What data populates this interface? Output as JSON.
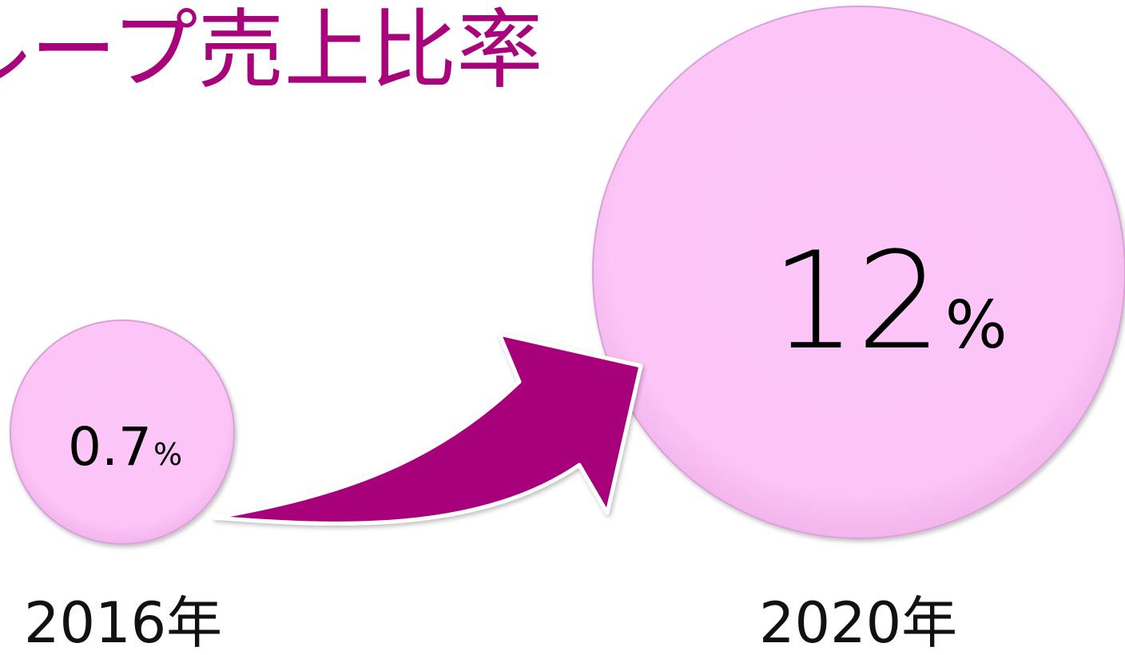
{
  "colors": {
    "accent": "#a8037a",
    "circle_fill": "#fdc6f8",
    "circle_edge": "#d9a2d6",
    "text": "#000000"
  },
  "chart_data": {
    "type": "bubble",
    "title": "ループ売上比率",
    "unit": "%",
    "categories": [
      "2016年",
      "2020年"
    ],
    "values": [
      0.7,
      12
    ],
    "value_labels": [
      "0.7",
      "12"
    ],
    "annotation": "arrow from 2016年 to 2020年 indicating growth"
  }
}
